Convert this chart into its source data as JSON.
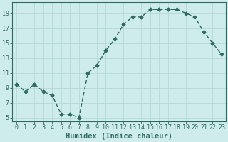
{
  "x": [
    0,
    1,
    2,
    3,
    4,
    5,
    6,
    7,
    8,
    9,
    10,
    11,
    12,
    13,
    14,
    15,
    16,
    17,
    18,
    19,
    20,
    21,
    22,
    23
  ],
  "y": [
    9.5,
    8.5,
    9.5,
    8.5,
    8.0,
    5.5,
    5.5,
    5.0,
    11.0,
    12.0,
    14.0,
    15.5,
    17.5,
    18.5,
    18.5,
    19.5,
    19.5,
    19.5,
    19.5,
    19.0,
    18.5,
    16.5,
    15.0,
    13.5
  ],
  "line_color": "#2d6b5e",
  "marker": "D",
  "markersize": 2.5,
  "linewidth": 1.0,
  "background_color": "#ceecea",
  "grid_color": "#b8d8d5",
  "xlabel": "Humidex (Indice chaleur)",
  "ylim": [
    4.5,
    20.5
  ],
  "xlim": [
    -0.5,
    23.5
  ],
  "yticks": [
    5,
    7,
    9,
    11,
    13,
    15,
    17,
    19
  ],
  "xticks": [
    0,
    1,
    2,
    3,
    4,
    5,
    6,
    7,
    8,
    9,
    10,
    11,
    12,
    13,
    14,
    15,
    16,
    17,
    18,
    19,
    20,
    21,
    22,
    23
  ],
  "tick_fontsize": 6.0,
  "xlabel_fontsize": 7.5
}
